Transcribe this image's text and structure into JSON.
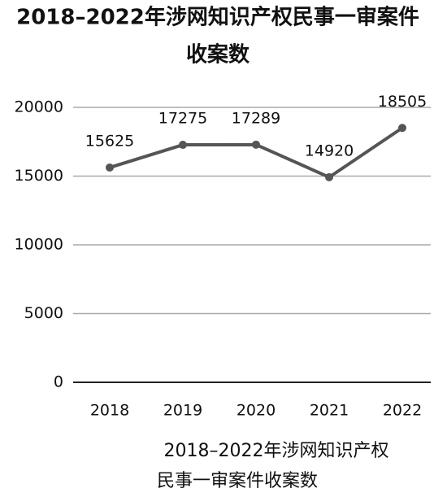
{
  "chart_data": {
    "type": "line",
    "title": [
      "2018–2022年涉网知识产权民事一审案件",
      "收案数"
    ],
    "caption": [
      "2018–2022年涉网知识产权",
      "民事一审案件收案数"
    ],
    "categories": [
      "2018",
      "2019",
      "2020",
      "2021",
      "2022"
    ],
    "values": [
      15625,
      17275,
      17289,
      14920,
      18505
    ],
    "color": "#555555",
    "ylim": [
      0,
      20000
    ],
    "yticks": [
      0,
      5000,
      10000,
      15000,
      20000
    ],
    "grid": true
  }
}
